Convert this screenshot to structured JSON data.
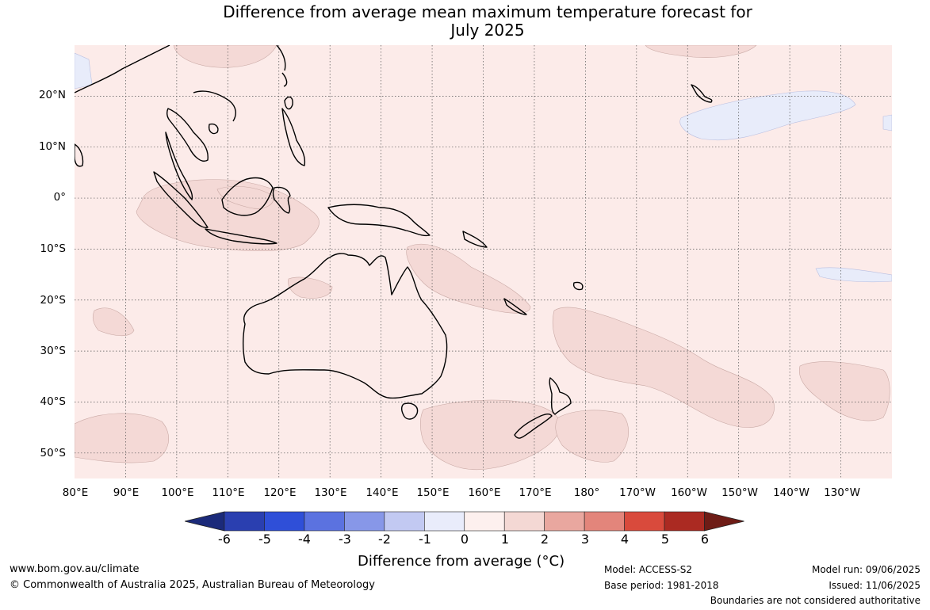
{
  "title": {
    "line1": "Difference from average mean maximum temperature forecast for",
    "line2": "July 2025"
  },
  "map": {
    "ocean_color": "#fcebe9",
    "land_outline_color": "#000000",
    "border_color": "#8f7a7a",
    "warm_patch_color": "#f4d9d6",
    "cool_patch_color": "#e8ecfa",
    "lat_labels": [
      {
        "label": "20°N",
        "lat": 20
      },
      {
        "label": "10°N",
        "lat": 10
      },
      {
        "label": "0°",
        "lat": 0
      },
      {
        "label": "10°S",
        "lat": -10
      },
      {
        "label": "20°S",
        "lat": -20
      },
      {
        "label": "30°S",
        "lat": -30
      },
      {
        "label": "40°S",
        "lat": -40
      },
      {
        "label": "50°S",
        "lat": -50
      }
    ],
    "lon_labels": [
      {
        "label": "80°E",
        "lon": 80
      },
      {
        "label": "90°E",
        "lon": 90
      },
      {
        "label": "100°E",
        "lon": 100
      },
      {
        "label": "110°E",
        "lon": 110
      },
      {
        "label": "120°E",
        "lon": 120
      },
      {
        "label": "130°E",
        "lon": 130
      },
      {
        "label": "140°E",
        "lon": 140
      },
      {
        "label": "150°E",
        "lon": 150
      },
      {
        "label": "160°E",
        "lon": 160
      },
      {
        "label": "170°E",
        "lon": 170
      },
      {
        "label": "180°",
        "lon": 180
      },
      {
        "label": "170°W",
        "lon": 190
      },
      {
        "label": "160°W",
        "lon": 200
      },
      {
        "label": "150°W",
        "lon": 210
      },
      {
        "label": "140°W",
        "lon": 220
      },
      {
        "label": "130°W",
        "lon": 230
      }
    ]
  },
  "colorbar": {
    "title": "Difference from average (°C)",
    "ticks": [
      "-6",
      "-5",
      "-4",
      "-3",
      "-2",
      "-1",
      "0",
      "1",
      "2",
      "3",
      "4",
      "5",
      "6"
    ],
    "colors": [
      "#1b2a7a",
      "#2a3fb0",
      "#2f4fd8",
      "#5b72e0",
      "#8797e8",
      "#c2c9f2",
      "#e9ecfb",
      "#fdf0ee",
      "#f4d8d4",
      "#e9a79f",
      "#e3857b",
      "#d94a3c",
      "#ab2a22",
      "#6e1c16"
    ]
  },
  "footer": {
    "site": "www.bom.gov.au/climate",
    "copyright": "© Commonwealth of Australia 2025, Australian Bureau of Meteorology",
    "model": "Model: ACCESS-S2",
    "base_period": "Base period: 1981-2018",
    "model_run": "Model run: 09/06/2025",
    "issued": "Issued: 11/06/2025",
    "disclaimer": "Boundaries are not considered authoritative"
  }
}
